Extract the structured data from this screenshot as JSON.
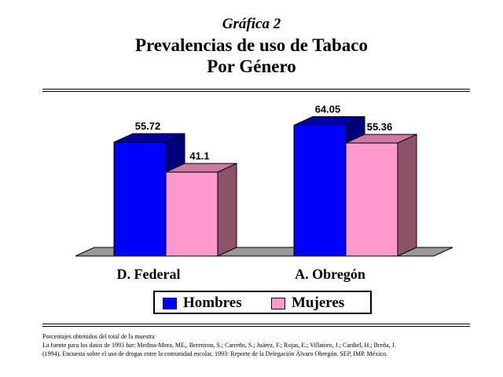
{
  "header": {
    "supertitle": "Gráfica 2",
    "title_line1": "Prevalencias de uso de Tabaco",
    "title_line2": "Por Género"
  },
  "colors": {
    "hombres_front": "#0000ff",
    "hombres_top": "#0000a0",
    "hombres_side": "#00007a",
    "mujeres_front": "#ff99cc",
    "mujeres_top": "#cc7aa3",
    "mujeres_side": "#8c5468",
    "floor": "#999999"
  },
  "chart_data": {
    "type": "bar",
    "categories": [
      "D. Federal",
      "A. Obregón"
    ],
    "series": [
      {
        "name": "Hombres",
        "values": [
          55.72,
          64.05
        ]
      },
      {
        "name": "Mujeres",
        "values": [
          41.1,
          55.36
        ]
      }
    ],
    "data_labels": [
      [
        "55.72",
        "41.1"
      ],
      [
        "64.05",
        "55.36"
      ]
    ],
    "ylim": [
      0,
      70
    ],
    "legend_position": "bottom",
    "grid": false
  },
  "footnote": {
    "line1": "Porcentajes obtenidos del total de la muestra",
    "line2": "La fuente para los datos de 1993 fue: Medina-Mora, ME,, Berenzon, S.; Carreño, S.; Juárez, F.; Rojas, E.; Villatoro, J.; Cardiel, H.; Breña, J.",
    "line3": "(1994). Encuesta sobre el uso de drogas entre la comunidad escolar, 1993: Reporte de la Delegación Álvaro Obregón. SEP, IMP. México."
  }
}
